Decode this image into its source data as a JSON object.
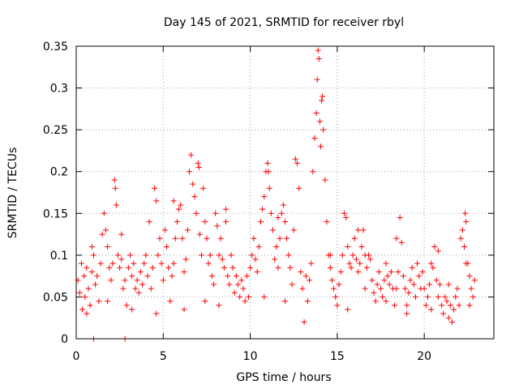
{
  "chart_data": {
    "type": "scatter",
    "title": "Day 145 of 2021, SRMTID for receiver rbyl",
    "xlabel": "GPS time / hours",
    "ylabel": "SRMTID / TECUs",
    "xlim": [
      0,
      24
    ],
    "ylim": [
      0,
      0.35
    ],
    "x_ticks": [
      {
        "value": 0,
        "label": "0"
      },
      {
        "value": 5,
        "label": "5"
      },
      {
        "value": 10,
        "label": "10"
      },
      {
        "value": 15,
        "label": "15"
      },
      {
        "value": 20,
        "label": "20"
      }
    ],
    "y_ticks": [
      {
        "value": 0,
        "label": "0"
      },
      {
        "value": 0.05,
        "label": "0.05"
      },
      {
        "value": 0.1,
        "label": "0.1"
      },
      {
        "value": 0.15,
        "label": "0.15"
      },
      {
        "value": 0.2,
        "label": "0.2"
      },
      {
        "value": 0.25,
        "label": "0.25"
      },
      {
        "value": 0.3,
        "label": "0.3"
      },
      {
        "value": 0.35,
        "label": "0.35"
      }
    ],
    "grid": true,
    "marker": "+",
    "color": "#ff0000",
    "series": [
      {
        "name": "SRMTID",
        "points": [
          [
            0.1,
            0.07
          ],
          [
            0.2,
            0.055
          ],
          [
            0.3,
            0.09
          ],
          [
            0.35,
            0.035
          ],
          [
            0.45,
            0.075
          ],
          [
            0.5,
            0.05
          ],
          [
            0.6,
            0.085
          ],
          [
            0.7,
            0.06
          ],
          [
            0.8,
            0.04
          ],
          [
            0.9,
            0.08
          ],
          [
            1.0,
            0.1
          ],
          [
            1.1,
            0.065
          ],
          [
            1.2,
            0.075
          ],
          [
            1.3,
            0.045
          ],
          [
            1.4,
            0.09
          ],
          [
            1.5,
            0.125
          ],
          [
            1.6,
            0.15
          ],
          [
            1.7,
            0.13
          ],
          [
            1.8,
            0.11
          ],
          [
            1.9,
            0.085
          ],
          [
            2.0,
            0.07
          ],
          [
            2.1,
            0.09
          ],
          [
            2.2,
            0.19
          ],
          [
            2.25,
            0.18
          ],
          [
            2.3,
            0.16
          ],
          [
            2.4,
            0.1
          ],
          [
            2.5,
            0.085
          ],
          [
            2.6,
            0.095
          ],
          [
            2.7,
            0.06
          ],
          [
            2.8,
            0.07
          ],
          [
            2.9,
            0.04
          ],
          [
            3.0,
            0.085
          ],
          [
            3.1,
            0.1
          ],
          [
            3.2,
            0.075
          ],
          [
            3.3,
            0.09
          ],
          [
            3.4,
            0.06
          ],
          [
            3.5,
            0.07
          ],
          [
            3.6,
            0.055
          ],
          [
            3.7,
            0.08
          ],
          [
            3.8,
            0.065
          ],
          [
            3.9,
            0.09
          ],
          [
            4.0,
            0.1
          ],
          [
            4.1,
            0.075
          ],
          [
            4.2,
            0.14
          ],
          [
            4.3,
            0.06
          ],
          [
            4.4,
            0.085
          ],
          [
            4.5,
            0.18
          ],
          [
            4.6,
            0.165
          ],
          [
            4.7,
            0.1
          ],
          [
            4.8,
            0.12
          ],
          [
            4.9,
            0.09
          ],
          [
            5.0,
            0.07
          ],
          [
            5.1,
            0.13
          ],
          [
            5.2,
            0.11
          ],
          [
            5.3,
            0.085
          ],
          [
            5.4,
            0.045
          ],
          [
            5.5,
            0.075
          ],
          [
            5.6,
            0.09
          ],
          [
            5.7,
            0.12
          ],
          [
            5.8,
            0.14
          ],
          [
            5.9,
            0.155
          ],
          [
            6.0,
            0.16
          ],
          [
            6.1,
            0.12
          ],
          [
            6.2,
            0.08
          ],
          [
            6.3,
            0.095
          ],
          [
            6.4,
            0.13
          ],
          [
            6.5,
            0.2
          ],
          [
            6.6,
            0.22
          ],
          [
            6.7,
            0.185
          ],
          [
            6.8,
            0.17
          ],
          [
            6.9,
            0.15
          ],
          [
            7.0,
            0.21
          ],
          [
            7.05,
            0.205
          ],
          [
            7.1,
            0.125
          ],
          [
            7.2,
            0.1
          ],
          [
            7.3,
            0.18
          ],
          [
            7.4,
            0.14
          ],
          [
            7.5,
            0.12
          ],
          [
            7.6,
            0.09
          ],
          [
            7.7,
            0.1
          ],
          [
            7.8,
            0.075
          ],
          [
            7.9,
            0.065
          ],
          [
            8.0,
            0.15
          ],
          [
            8.1,
            0.135
          ],
          [
            8.2,
            0.1
          ],
          [
            8.3,
            0.12
          ],
          [
            8.4,
            0.095
          ],
          [
            8.5,
            0.085
          ],
          [
            8.6,
            0.14
          ],
          [
            8.7,
            0.075
          ],
          [
            8.8,
            0.065
          ],
          [
            8.9,
            0.1
          ],
          [
            9.0,
            0.085
          ],
          [
            9.1,
            0.055
          ],
          [
            9.2,
            0.075
          ],
          [
            9.3,
            0.065
          ],
          [
            9.4,
            0.05
          ],
          [
            9.5,
            0.07
          ],
          [
            9.6,
            0.06
          ],
          [
            9.7,
            0.045
          ],
          [
            9.8,
            0.075
          ],
          [
            9.9,
            0.05
          ],
          [
            10.0,
            0.085
          ],
          [
            10.1,
            0.1
          ],
          [
            10.2,
            0.12
          ],
          [
            10.3,
            0.095
          ],
          [
            10.4,
            0.08
          ],
          [
            10.5,
            0.11
          ],
          [
            10.6,
            0.14
          ],
          [
            10.7,
            0.155
          ],
          [
            10.8,
            0.17
          ],
          [
            10.9,
            0.2
          ],
          [
            11.0,
            0.21
          ],
          [
            11.05,
            0.2
          ],
          [
            11.1,
            0.18
          ],
          [
            11.2,
            0.15
          ],
          [
            11.3,
            0.13
          ],
          [
            11.4,
            0.095
          ],
          [
            11.5,
            0.11
          ],
          [
            11.6,
            0.085
          ],
          [
            11.7,
            0.12
          ],
          [
            11.8,
            0.15
          ],
          [
            11.9,
            0.16
          ],
          [
            12.0,
            0.14
          ],
          [
            12.1,
            0.12
          ],
          [
            12.2,
            0.1
          ],
          [
            12.3,
            0.085
          ],
          [
            12.4,
            0.065
          ],
          [
            12.5,
            0.13
          ],
          [
            12.6,
            0.215
          ],
          [
            12.7,
            0.21
          ],
          [
            12.8,
            0.18
          ],
          [
            12.9,
            0.08
          ],
          [
            13.0,
            0.06
          ],
          [
            13.1,
            0.02
          ],
          [
            13.2,
            0.075
          ],
          [
            13.3,
            0.045
          ],
          [
            13.4,
            0.07
          ],
          [
            13.5,
            0.09
          ],
          [
            13.6,
            0.2
          ],
          [
            13.7,
            0.24
          ],
          [
            13.8,
            0.27
          ],
          [
            13.85,
            0.31
          ],
          [
            13.9,
            0.345
          ],
          [
            13.95,
            0.335
          ],
          [
            14.0,
            0.26
          ],
          [
            14.05,
            0.23
          ],
          [
            14.1,
            0.285
          ],
          [
            14.15,
            0.29
          ],
          [
            14.2,
            0.25
          ],
          [
            14.3,
            0.19
          ],
          [
            14.4,
            0.14
          ],
          [
            14.5,
            0.1
          ],
          [
            14.6,
            0.085
          ],
          [
            14.7,
            0.07
          ],
          [
            14.8,
            0.06
          ],
          [
            14.9,
            0.05
          ],
          [
            15.0,
            0.04
          ],
          [
            15.1,
            0.065
          ],
          [
            15.2,
            0.08
          ],
          [
            15.3,
            0.1
          ],
          [
            15.4,
            0.15
          ],
          [
            15.5,
            0.145
          ],
          [
            15.6,
            0.11
          ],
          [
            15.7,
            0.09
          ],
          [
            15.8,
            0.085
          ],
          [
            15.9,
            0.1
          ],
          [
            16.0,
            0.12
          ],
          [
            16.1,
            0.095
          ],
          [
            16.2,
            0.08
          ],
          [
            16.3,
            0.09
          ],
          [
            16.4,
            0.11
          ],
          [
            16.5,
            0.13
          ],
          [
            16.6,
            0.1
          ],
          [
            16.7,
            0.085
          ],
          [
            16.8,
            0.1
          ],
          [
            16.9,
            0.095
          ],
          [
            17.0,
            0.07
          ],
          [
            17.1,
            0.055
          ],
          [
            17.2,
            0.045
          ],
          [
            17.3,
            0.065
          ],
          [
            17.4,
            0.08
          ],
          [
            17.5,
            0.06
          ],
          [
            17.6,
            0.05
          ],
          [
            17.7,
            0.07
          ],
          [
            17.8,
            0.09
          ],
          [
            17.9,
            0.075
          ],
          [
            18.0,
            0.065
          ],
          [
            18.1,
            0.08
          ],
          [
            18.2,
            0.06
          ],
          [
            18.3,
            0.04
          ],
          [
            18.4,
            0.06
          ],
          [
            18.5,
            0.08
          ],
          [
            18.6,
            0.145
          ],
          [
            18.7,
            0.115
          ],
          [
            18.8,
            0.075
          ],
          [
            18.9,
            0.06
          ],
          [
            19.0,
            0.04
          ],
          [
            19.1,
            0.055
          ],
          [
            19.2,
            0.07
          ],
          [
            19.3,
            0.085
          ],
          [
            19.4,
            0.065
          ],
          [
            19.5,
            0.05
          ],
          [
            19.6,
            0.09
          ],
          [
            19.7,
            0.075
          ],
          [
            19.8,
            0.06
          ],
          [
            19.9,
            0.08
          ],
          [
            20.0,
            0.06
          ],
          [
            20.1,
            0.04
          ],
          [
            20.2,
            0.05
          ],
          [
            20.3,
            0.065
          ],
          [
            20.4,
            0.09
          ],
          [
            20.5,
            0.085
          ],
          [
            20.6,
            0.11
          ],
          [
            20.7,
            0.07
          ],
          [
            20.8,
            0.05
          ],
          [
            20.9,
            0.065
          ],
          [
            21.0,
            0.04
          ],
          [
            21.1,
            0.03
          ],
          [
            21.2,
            0.05
          ],
          [
            21.3,
            0.045
          ],
          [
            21.4,
            0.065
          ],
          [
            21.5,
            0.04
          ],
          [
            21.6,
            0.02
          ],
          [
            21.7,
            0.035
          ],
          [
            21.8,
            0.05
          ],
          [
            21.9,
            0.06
          ],
          [
            22.0,
            0.04
          ],
          [
            22.1,
            0.12
          ],
          [
            22.2,
            0.13
          ],
          [
            22.3,
            0.11
          ],
          [
            22.35,
            0.15
          ],
          [
            22.4,
            0.14
          ],
          [
            22.5,
            0.09
          ],
          [
            22.6,
            0.075
          ],
          [
            22.7,
            0.06
          ],
          [
            22.8,
            0.05
          ],
          [
            22.9,
            0.07
          ],
          [
            1.0,
            0.0
          ],
          [
            2.8,
            0.0
          ],
          [
            0.6,
            0.03
          ],
          [
            1.8,
            0.045
          ],
          [
            3.2,
            0.035
          ],
          [
            4.6,
            0.03
          ],
          [
            6.2,
            0.035
          ],
          [
            7.4,
            0.045
          ],
          [
            8.2,
            0.04
          ],
          [
            10.8,
            0.05
          ],
          [
            12.0,
            0.045
          ],
          [
            15.6,
            0.035
          ],
          [
            16.6,
            0.06
          ],
          [
            17.8,
            0.045
          ],
          [
            19.0,
            0.03
          ],
          [
            20.4,
            0.035
          ],
          [
            21.4,
            0.025
          ],
          [
            22.6,
            0.04
          ],
          [
            0.9,
            0.11
          ],
          [
            2.6,
            0.125
          ],
          [
            5.6,
            0.165
          ],
          [
            8.6,
            0.155
          ],
          [
            11.6,
            0.145
          ],
          [
            14.6,
            0.1
          ],
          [
            16.2,
            0.13
          ],
          [
            18.4,
            0.12
          ],
          [
            20.8,
            0.105
          ],
          [
            22.4,
            0.09
          ]
        ]
      }
    ]
  }
}
